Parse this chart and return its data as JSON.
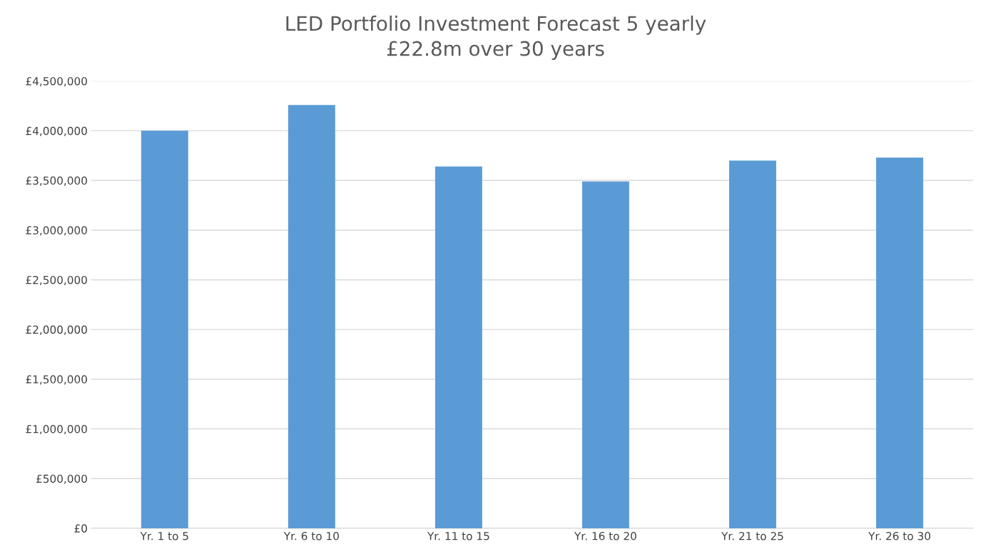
{
  "chart_data": {
    "type": "bar",
    "title": "LED Portfolio Investment Forecast 5 yearly",
    "subtitle": "£22.8m over 30 years",
    "categories": [
      "Yr. 1 to 5",
      "Yr. 6 to 10",
      "Yr. 11 to 15",
      "Yr. 16 to 20",
      "Yr. 21 to 25",
      "Yr. 26 to 30"
    ],
    "values": [
      4000000,
      4260000,
      3640000,
      3490000,
      3700000,
      3730000
    ],
    "color": "#5b9bd5",
    "ylim": [
      0,
      4500000
    ],
    "yticks": [
      {
        "value": 0,
        "label": "£0"
      },
      {
        "value": 500000,
        "label": "£500,000"
      },
      {
        "value": 1000000,
        "label": "£1,000,000"
      },
      {
        "value": 1500000,
        "label": "£1,500,000"
      },
      {
        "value": 2000000,
        "label": "£2,000,000"
      },
      {
        "value": 2500000,
        "label": "£2,500,000"
      },
      {
        "value": 3000000,
        "label": "£3,000,000"
      },
      {
        "value": 3500000,
        "label": "£3,500,000"
      },
      {
        "value": 4000000,
        "label": "£4,000,000"
      },
      {
        "value": 4500000,
        "label": "£4,500,000"
      }
    ],
    "grid": "y",
    "legend": false
  }
}
